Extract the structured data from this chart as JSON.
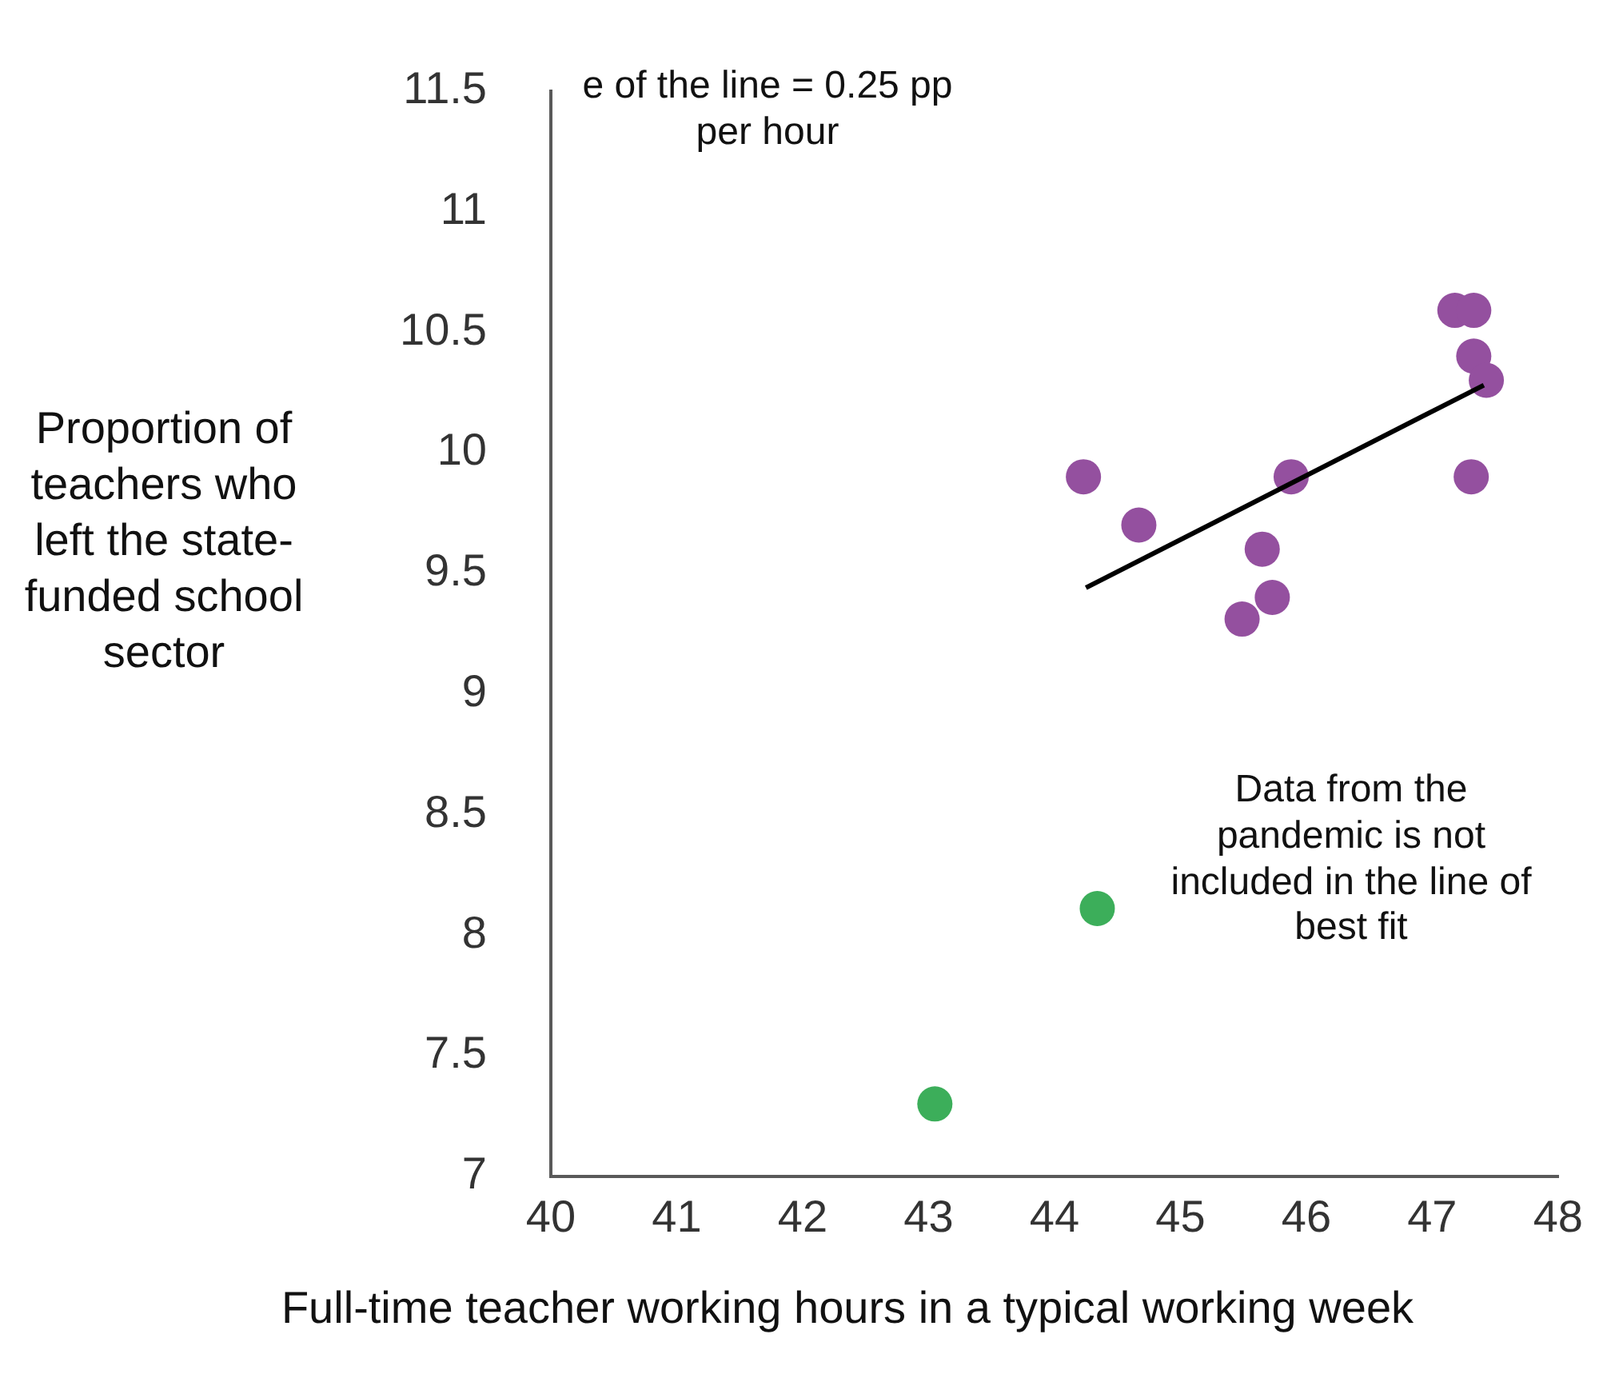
{
  "chart_data": {
    "type": "scatter",
    "xlabel": "Full-time teacher working hours in a typical working week",
    "ylabel": "Proportion of teachers who left the state-funded school sector",
    "xlim": [
      40,
      48
    ],
    "xticks": [
      40,
      41,
      42,
      43,
      44,
      45,
      46,
      47,
      48
    ],
    "ylim": [
      7,
      11.5
    ],
    "yticks": [
      7,
      7.5,
      8,
      8.5,
      9,
      9.5,
      10,
      10.5,
      11,
      11.5
    ],
    "grid": false,
    "legend": false,
    "marker": "circle",
    "series": [
      {
        "color": "#94509f",
        "x": [
          44.23,
          44.67,
          45.88,
          45.65,
          45.73,
          45.49,
          47.18,
          47.33,
          47.33,
          47.43,
          47.31
        ],
        "values": [
          9.9,
          9.7,
          9.9,
          9.6,
          9.4,
          9.31,
          10.59,
          10.59,
          10.4,
          10.3,
          9.9
        ]
      },
      {
        "color": "#3cae5a",
        "x": [
          44.34,
          43.05
        ],
        "values": [
          8.11,
          7.3
        ]
      },
      {
        "type": "line",
        "color": "#000000",
        "marker": "none",
        "x": [
          44.25,
          47.41
        ],
        "values": [
          9.44,
          10.28
        ]
      }
    ],
    "annotations": [
      "e of the line = 0.25 pp per hour",
      "Data from the pandemic is not included in the line of best fit"
    ]
  }
}
